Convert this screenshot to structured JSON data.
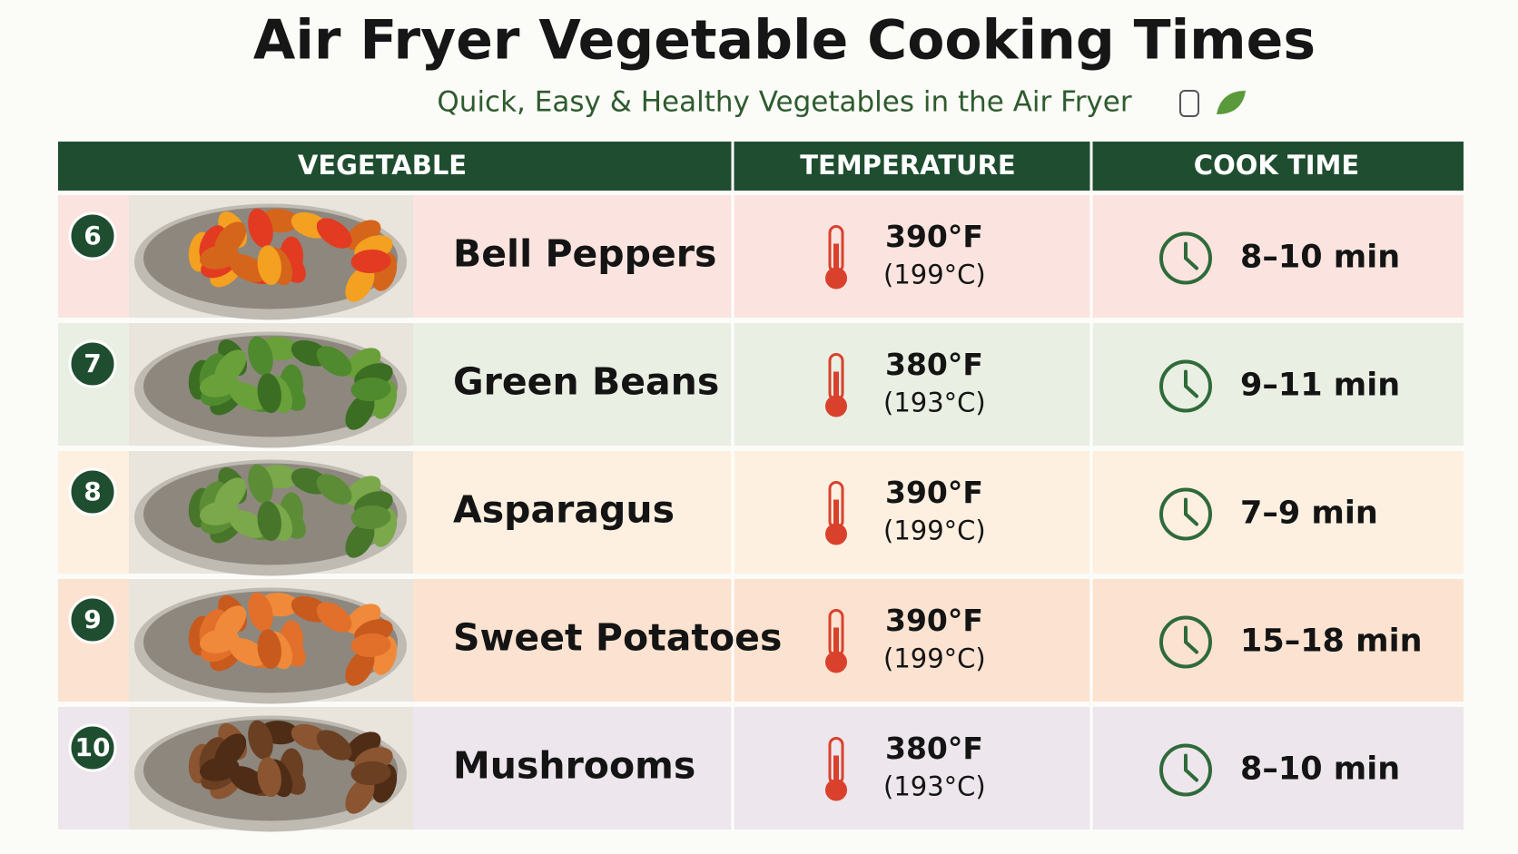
{
  "header": {
    "title": "Air Fryer Vegetable Cooking Times",
    "subtitle": "Quick, Easy & Healthy Vegetables in the Air Fryer"
  },
  "table": {
    "columns": [
      "VEGETABLE",
      "TEMPERATURE",
      "COOK TIME"
    ],
    "rows": [
      {
        "number": "6",
        "vegetable": "Bell Peppers",
        "temp_f": "390°F",
        "temp_c": "(199°C)",
        "time": "8–10 min"
      },
      {
        "number": "7",
        "vegetable": "Green Beans",
        "temp_f": "380°F",
        "temp_c": "(193°C)",
        "time": "9–11 min"
      },
      {
        "number": "8",
        "vegetable": "Asparagus",
        "temp_f": "390°F",
        "temp_c": "(199°C)",
        "time": "7–9 min"
      },
      {
        "number": "9",
        "vegetable": "Sweet Potatoes",
        "temp_f": "390°F",
        "temp_c": "(199°C)",
        "time": "15–18 min"
      },
      {
        "number": "10",
        "vegetable": "Mushrooms",
        "temp_f": "380°F",
        "temp_c": "(193°C)",
        "time": "8–10 min"
      }
    ]
  }
}
